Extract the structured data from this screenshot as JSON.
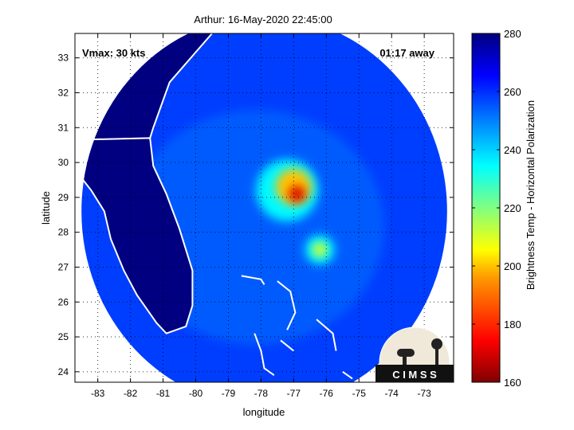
{
  "chart_data": {
    "type": "heatmap",
    "title": "Arthur: 16-May-2020 22:45:00",
    "xlabel": "longitude",
    "ylabel": "latitude",
    "xlim": [
      -83.7,
      -72.1
    ],
    "ylim": [
      23.7,
      33.7
    ],
    "xticks": [
      -83,
      -82,
      -81,
      -80,
      -79,
      -78,
      -77,
      -76,
      -75,
      -74,
      -73
    ],
    "yticks": [
      24,
      25,
      26,
      27,
      28,
      29,
      30,
      31,
      32,
      33
    ],
    "grid": true,
    "annotations": {
      "vmax": "Vmax: 30 kts",
      "time_away": "01:17 away"
    },
    "colorbar": {
      "label": "Brightness Temp - Horizontal Polarization",
      "range": [
        160,
        280
      ],
      "ticks": [
        160,
        180,
        200,
        220,
        240,
        260,
        280
      ]
    },
    "swath": {
      "center_lon": -77.9,
      "center_lat": 28.6,
      "radius_deg": 5.6
    },
    "background_temp": 258,
    "land_temp": 280,
    "features": [
      {
        "name": "cold-core",
        "lon": -76.9,
        "lat": 29.1,
        "temp": 170,
        "radius_deg": 0.25
      },
      {
        "name": "inner-band",
        "lon": -77.0,
        "lat": 29.3,
        "temp": 200,
        "radius_deg": 0.55
      },
      {
        "name": "outer-band",
        "lon": -77.2,
        "lat": 29.2,
        "temp": 235,
        "radius_deg": 0.95
      },
      {
        "name": "southern-cell",
        "lon": -76.2,
        "lat": 27.5,
        "temp": 205,
        "radius_deg": 0.2
      },
      {
        "name": "southern-cell-halo",
        "lon": -76.2,
        "lat": 27.5,
        "temp": 235,
        "radius_deg": 0.45
      }
    ],
    "logo": {
      "text": "C I M S S"
    }
  }
}
